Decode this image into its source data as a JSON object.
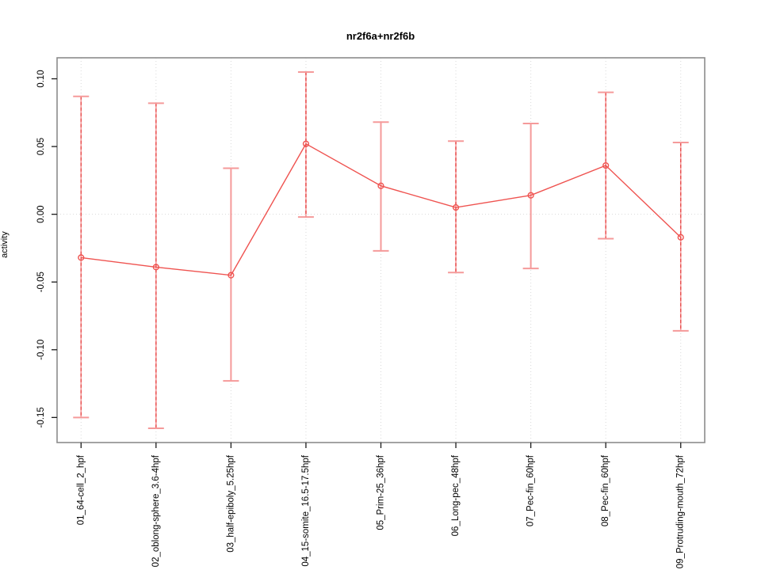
{
  "chart_data": {
    "type": "line",
    "title": "nr2f6a+nr2f6b",
    "xlabel": "",
    "ylabel": "activity",
    "categories": [
      "01_64-cell_2_hpf",
      "02_oblong-sphere_3.6-4hpf",
      "03_half-epiboly_5.25hpf",
      "04_15-somite_16.5-17.5hpf",
      "05_Prim-25_36hpf",
      "06_Long-pec_48hpf",
      "07_Pec-fin_60hpf",
      "08_Pec-fin_60hpf",
      "09_Protruding-mouth_72hpf"
    ],
    "series": [
      {
        "name": "activity",
        "values": [
          -0.032,
          -0.039,
          -0.045,
          0.052,
          0.021,
          0.005,
          0.014,
          0.036,
          -0.017
        ],
        "error_upper": [
          0.087,
          0.082,
          0.034,
          0.105,
          0.068,
          0.054,
          0.067,
          0.09,
          0.053
        ],
        "error_lower": [
          -0.15,
          -0.158,
          -0.123,
          -0.002,
          -0.027,
          -0.043,
          -0.04,
          -0.018,
          -0.086
        ]
      }
    ],
    "whisker_styles": [
      "dashed",
      "dashed",
      "solid",
      "dashed",
      "solid",
      "dashed",
      "solid",
      "dashed",
      "dashed"
    ],
    "yticks": [
      "-0.15",
      "-0.10",
      "-0.05",
      "0.00",
      "0.05",
      "0.10"
    ],
    "ytick_values": [
      -0.15,
      -0.1,
      -0.05,
      0.0,
      0.05,
      0.1
    ],
    "ylim": [
      -0.1685,
      0.1155
    ],
    "grid": {
      "vertical": "dotted line at every category",
      "horizontal": "dotted line at 0.00 only"
    },
    "legend": "none",
    "marker": "open-circle",
    "colors": {
      "line": "#ef5350",
      "marker": "#ef5350",
      "whisker_dash": "#e84c4c",
      "whisker_solid": "#f59a9a",
      "whisker_cap": "#f59a9a",
      "gridline": "#d9d9d9",
      "plot_border": "#8c8c8c",
      "tick": "#1a1a1a",
      "text": "#000000",
      "background": "#ffffff"
    }
  }
}
